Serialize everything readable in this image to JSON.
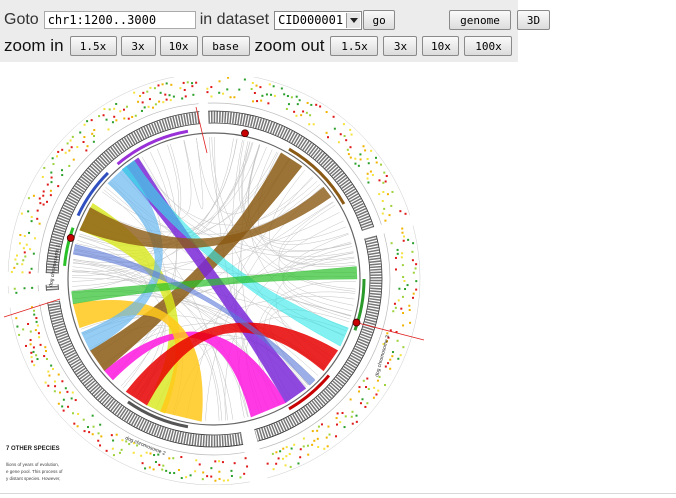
{
  "toolbar": {
    "goto_label": "Goto",
    "location_value": "chr1:1200..3000",
    "dataset_label": "in dataset",
    "dataset_selected": "CID000001",
    "go_label": "go",
    "genome_label": "genome",
    "three_d_label": "3D",
    "zoom_in_label": "zoom in",
    "zoom_in": [
      "1.5x",
      "3x",
      "10x",
      "base"
    ],
    "zoom_out_label": "zoom out",
    "zoom_out": [
      "1.5x",
      "3x",
      "10x",
      "100x"
    ]
  },
  "figure": {
    "heading": "7 OTHER SPECIES",
    "caption_lines": [
      "llions of years of evolution,",
      "e gene pool. This process of",
      "y distant species. However,"
    ],
    "labels": [
      "dog chromosome 1",
      "dog chromosome 2",
      "dog chromosome 3"
    ],
    "ribbon_colors": [
      "#8b5a14",
      "#7b28d8",
      "#d8e81a",
      "#ff18e0",
      "#ffc81a",
      "#e80000",
      "#6ab8f0",
      "#30e8e8",
      "#2ac02a",
      "#5a78d8"
    ]
  }
}
